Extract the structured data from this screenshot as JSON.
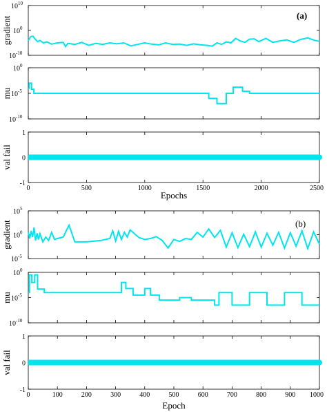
{
  "chart_data": [
    {
      "type": "line",
      "panel_label": "(a)",
      "xlabel": "Epochs",
      "xlim": [
        0,
        2500
      ],
      "xticks": [
        0,
        500,
        1000,
        1500,
        2000,
        2500
      ],
      "line_color": "#00e5ee",
      "subplots": [
        {
          "ylabel": "gradient",
          "scale": "log",
          "ylim_exp": [
            -10,
            10
          ],
          "yticks": [
            {
              "base": "10",
              "exp": "10",
              "v": 10
            },
            {
              "base": "10",
              "exp": "0",
              "v": 0
            },
            {
              "base": "10",
              "exp": "-10",
              "v": -10
            }
          ],
          "x": [
            0,
            20,
            40,
            60,
            80,
            100,
            130,
            160,
            200,
            250,
            300,
            320,
            340,
            400,
            460,
            520,
            580,
            640,
            700,
            760,
            820,
            880,
            940,
            1000,
            1060,
            1120,
            1180,
            1240,
            1300,
            1360,
            1420,
            1480,
            1540,
            1580,
            1620,
            1660,
            1700,
            1740,
            1780,
            1820,
            1860,
            1900,
            1940,
            1980,
            2040,
            2100,
            2160,
            2220,
            2280,
            2340,
            2400,
            2460,
            2500
          ],
          "y_log10": [
            -4.2,
            -2.5,
            -2.3,
            -3.5,
            -4.5,
            -4.0,
            -5.0,
            -4.6,
            -5.5,
            -5.0,
            -4.8,
            -6.5,
            -5.2,
            -5.6,
            -4.8,
            -6.0,
            -5.2,
            -5.6,
            -5.0,
            -5.4,
            -5.0,
            -6.2,
            -5.6,
            -5.0,
            -5.5,
            -5.8,
            -5.0,
            -5.6,
            -5.5,
            -6.0,
            -5.4,
            -5.8,
            -6.0,
            -6.3,
            -5.0,
            -5.6,
            -4.6,
            -5.0,
            -3.2,
            -4.2,
            -4.8,
            -3.5,
            -3.4,
            -4.5,
            -3.2,
            -4.8,
            -4.2,
            -3.8,
            -4.8,
            -3.6,
            -3.0,
            -4.0,
            -4.4
          ]
        },
        {
          "ylabel": "mu",
          "scale": "log",
          "ylim_exp": [
            -10,
            0
          ],
          "yticks": [
            {
              "base": "10",
              "exp": "0",
              "v": 0
            },
            {
              "base": "10",
              "exp": "-5",
              "v": -5
            },
            {
              "base": "10",
              "exp": "-10",
              "v": -10
            }
          ],
          "x": [
            0,
            8,
            8,
            28,
            28,
            48,
            48,
            100,
            100,
            300,
            300,
            500,
            500,
            700,
            700,
            1100,
            1100,
            1200,
            1200,
            1500,
            1500,
            1550,
            1550,
            1620,
            1620,
            1700,
            1700,
            1760,
            1760,
            1840,
            1840,
            1900,
            1900,
            2050,
            2050,
            2500
          ],
          "y_log10": [
            -4.0,
            -4.0,
            -3.0,
            -3.0,
            -4.2,
            -4.2,
            -5.0,
            -5.0,
            -5.0,
            -5.0,
            -5.0,
            -5.0,
            -5.0,
            -5.0,
            -5.0,
            -5.0,
            -5.0,
            -5.0,
            -5.0,
            -5.0,
            -5.0,
            -5.0,
            -6.0,
            -6.0,
            -7.0,
            -7.0,
            -5.0,
            -5.0,
            -3.8,
            -3.8,
            -4.6,
            -4.6,
            -5.0,
            -5.0,
            -5.0,
            -5.0
          ]
        },
        {
          "ylabel": "val fail",
          "scale": "linear",
          "ylim": [
            -1,
            1
          ],
          "yticks": [
            {
              "t": "1",
              "v": 1
            },
            {
              "t": "0",
              "v": 0
            },
            {
              "t": "-1",
              "v": -1
            }
          ],
          "x": [
            0,
            2500
          ],
          "y": [
            0,
            0
          ]
        }
      ]
    },
    {
      "type": "line",
      "panel_label": "(b)",
      "xlabel": "Epoch",
      "xlim": [
        0,
        1000
      ],
      "xticks": [
        0,
        100,
        200,
        300,
        400,
        500,
        600,
        700,
        800,
        900,
        1000
      ],
      "line_color": "#00e5ee",
      "subplots": [
        {
          "ylabel": "gradient",
          "scale": "log",
          "ylim_exp": [
            -5,
            5
          ],
          "yticks": [
            {
              "base": "10",
              "exp": "5",
              "v": 5
            },
            {
              "base": "10",
              "exp": "0",
              "v": 0
            },
            {
              "base": "10",
              "exp": "-5",
              "v": -5
            }
          ],
          "x": [
            0,
            5,
            10,
            15,
            20,
            25,
            30,
            35,
            40,
            50,
            60,
            70,
            80,
            90,
            100,
            120,
            140,
            160,
            200,
            250,
            280,
            290,
            300,
            310,
            320,
            330,
            340,
            350,
            380,
            400,
            420,
            440,
            460,
            480,
            500,
            520,
            540,
            560,
            580,
            600,
            620,
            640,
            660,
            680,
            700,
            720,
            740,
            760,
            780,
            800,
            820,
            840,
            860,
            880,
            900,
            920,
            940,
            960,
            980,
            1000
          ],
          "y_log10": [
            0.5,
            -0.8,
            0.8,
            -0.5,
            1.5,
            -1.2,
            0.3,
            -1.0,
            0.2,
            -1.5,
            -0.5,
            -1.2,
            0.5,
            -1.0,
            -0.8,
            -0.5,
            2.0,
            -1.5,
            -1.5,
            -1.2,
            -0.8,
            0.8,
            -1.3,
            0.7,
            -1.0,
            0.5,
            -0.5,
            1.0,
            -0.6,
            -1.0,
            -0.8,
            -0.4,
            -1.2,
            -2.8,
            -1.0,
            -1.4,
            -0.8,
            -1.0,
            0.5,
            -0.5,
            1.2,
            -0.6,
            0.9,
            -2.6,
            0.4,
            -2.7,
            0.1,
            -2.5,
            0.6,
            -2.6,
            0.3,
            -2.2,
            0.5,
            -2.8,
            0.4,
            -2.4,
            0.8,
            -2.9,
            0.6,
            -2.0
          ]
        },
        {
          "ylabel": "mu",
          "scale": "log",
          "ylim_exp": [
            -10,
            0
          ],
          "yticks": [
            {
              "base": "10",
              "exp": "0",
              "v": 0
            },
            {
              "base": "10",
              "exp": "-5",
              "v": -5
            },
            {
              "base": "10",
              "exp": "-10",
              "v": -10
            }
          ],
          "x": [
            0,
            4,
            4,
            12,
            12,
            22,
            22,
            32,
            32,
            55,
            55,
            290,
            290,
            320,
            320,
            335,
            335,
            360,
            360,
            400,
            400,
            420,
            420,
            450,
            450,
            520,
            520,
            560,
            560,
            640,
            640,
            655,
            655,
            700,
            700,
            760,
            760,
            820,
            820,
            880,
            880,
            940,
            940,
            1000
          ],
          "y_log10": [
            -4.0,
            -4.0,
            -0.5,
            -0.5,
            -2.0,
            -2.0,
            -0.5,
            -0.5,
            -3.3,
            -3.3,
            -4.0,
            -4.0,
            -4.0,
            -4.0,
            -2.0,
            -2.0,
            -3.2,
            -3.2,
            -4.5,
            -4.5,
            -3.2,
            -3.2,
            -4.5,
            -4.5,
            -5.5,
            -5.5,
            -5.0,
            -5.0,
            -5.5,
            -5.5,
            -6.5,
            -6.5,
            -4.0,
            -4.0,
            -6.5,
            -6.5,
            -4.0,
            -4.0,
            -6.5,
            -6.5,
            -4.0,
            -4.0,
            -6.5,
            -6.5
          ]
        },
        {
          "ylabel": "val fail",
          "scale": "linear",
          "ylim": [
            -1,
            1
          ],
          "yticks": [
            {
              "t": "1",
              "v": 1
            },
            {
              "t": "0",
              "v": 0
            },
            {
              "t": "-1",
              "v": -1
            }
          ],
          "x": [
            0,
            1000
          ],
          "y": [
            0,
            0
          ]
        }
      ]
    }
  ]
}
